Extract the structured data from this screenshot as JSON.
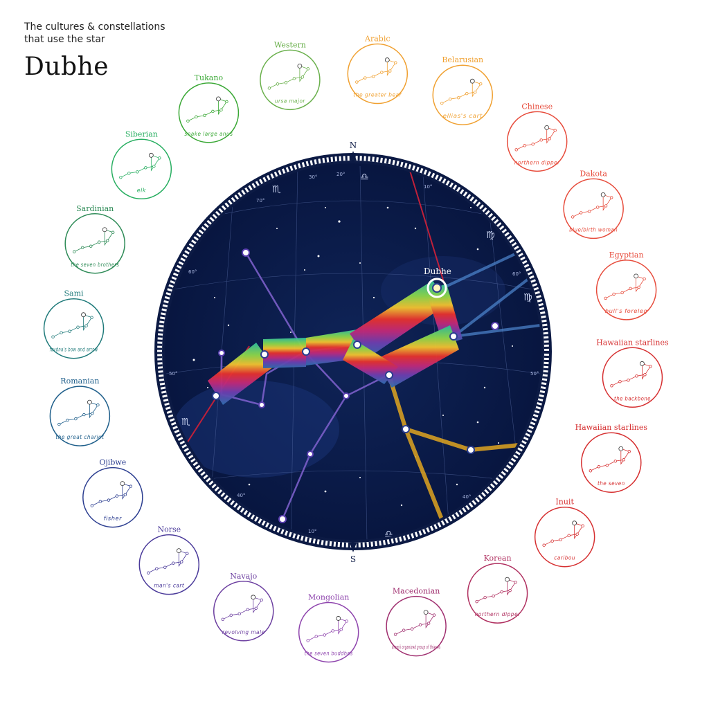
{
  "header": {
    "subtitle": "The cultures & constellations that use the star",
    "title": "Dubhe"
  },
  "compass": {
    "north": "N",
    "south": "S"
  },
  "star_label": "Dubhe",
  "sky_labels": {
    "dec": [
      "70°",
      "60°",
      "50°",
      "40°",
      "60°",
      "50°",
      "40°"
    ],
    "ra": [
      "30°",
      "20°",
      "10°",
      "10°"
    ]
  },
  "zodiac": {
    "top": "♎",
    "bottom": "♎",
    "left_top": "♏",
    "left_bottom": "♏",
    "right_top": "♍",
    "right_mid": "♍"
  },
  "cultures": [
    {
      "name": "Western",
      "meaning": "ursa major",
      "color": "#6ab04c"
    },
    {
      "name": "Arabic",
      "meaning": "the greater bear",
      "color": "#f0a030"
    },
    {
      "name": "Belarusian",
      "meaning": "ellias's cart",
      "color": "#f0a030"
    },
    {
      "name": "Chinese",
      "meaning": "northern dipper",
      "color": "#e74c3c"
    },
    {
      "name": "Dakota",
      "meaning": "blue/birth woman",
      "color": "#e74c3c"
    },
    {
      "name": "Egyptian",
      "meaning": "bull's foreleg",
      "color": "#e74c3c"
    },
    {
      "name": "Hawaiian starlines",
      "meaning": "the backbone",
      "color": "#d63031"
    },
    {
      "name": "Hawaiian starlines",
      "meaning": "the seven",
      "color": "#d63031"
    },
    {
      "name": "Inuit",
      "meaning": "caribou",
      "color": "#d63031"
    },
    {
      "name": "Korean",
      "meaning": "northern dipper",
      "color": "#b03060"
    },
    {
      "name": "Macedonian",
      "meaning": "aramii organized group of thieves",
      "color": "#a03070"
    },
    {
      "name": "Mongolian",
      "meaning": "the seven buddhas",
      "color": "#8e44ad"
    },
    {
      "name": "Navajo",
      "meaning": "revolving male",
      "color": "#6c3fa0"
    },
    {
      "name": "Norse",
      "meaning": "man's cart",
      "color": "#4a3a9a"
    },
    {
      "name": "Ojibwe",
      "meaning": "fisher",
      "color": "#2c3e90"
    },
    {
      "name": "Romanian",
      "meaning": "the great chariot",
      "color": "#1f5f8b"
    },
    {
      "name": "Sami",
      "meaning": "favdna's bow and arrow",
      "color": "#1f7a7a"
    },
    {
      "name": "Sardinian",
      "meaning": "the seven brothers",
      "color": "#2e8b57"
    },
    {
      "name": "Siberian",
      "meaning": "elk",
      "color": "#27ae60"
    },
    {
      "name": "Tukano",
      "meaning": "snake large anus",
      "color": "#3aa835"
    }
  ]
}
